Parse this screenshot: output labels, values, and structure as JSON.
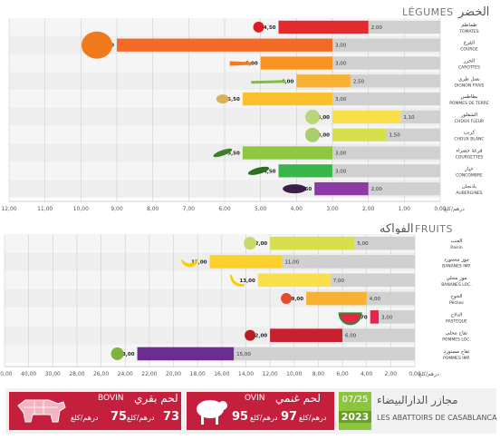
{
  "vegetables": {
    "title_fr": "LÉGUMES",
    "title_ar": "الخضر",
    "unit": "درهم/كلغ",
    "axis_ticks": [
      "12,00",
      "11,00",
      "10,00",
      "9,00",
      "8,00",
      "7,00",
      "6,00",
      "5,00",
      "4,00",
      "3,00",
      "2,00",
      "1,00",
      "0,00"
    ]
  },
  "fruits": {
    "title_fr": "FRUITS",
    "title_ar": "الفواكه",
    "unit": "درهم/كلغ",
    "axis_ticks": [
      "50,00",
      "40,00",
      "30,00",
      "28,00",
      "26,00",
      "24,00",
      "22,00",
      "20,00",
      "18,00",
      "16,00",
      "14,00",
      "12,00",
      "10,00",
      "8,00",
      "6,00",
      "4,00",
      "2,00",
      "0,00"
    ]
  },
  "chart_data": [
    {
      "type": "bar",
      "title": "LÉGUMES",
      "unit": "درهم/كلغ",
      "xlim": [
        0,
        12
      ],
      "series": [
        {
          "name": "max",
          "values": [
            4.5,
            9.0,
            5.0,
            4.0,
            5.5,
            3.0,
            3.0,
            5.5,
            4.5,
            3.5
          ]
        },
        {
          "name": "min",
          "values": [
            2.0,
            3.0,
            3.0,
            2.5,
            3.0,
            1.1,
            1.5,
            3.0,
            3.0,
            2.0
          ]
        }
      ],
      "categories": [
        {
          "ar": "طماطم",
          "fr": "TOMATES",
          "color": "#e32b2e",
          "icon": "tomato-icon"
        },
        {
          "ar": "القرع",
          "fr": "COURGE",
          "color": "#f26a26",
          "icon": "pumpkin-icon"
        },
        {
          "ar": "الجزر",
          "fr": "CAROTTES",
          "color": "#f7931e",
          "icon": "carrot-icon"
        },
        {
          "ar": "بصل طري",
          "fr": "OIGNON FRAIS",
          "color": "#f8b133",
          "icon": "onion-icon"
        },
        {
          "ar": "بطاطس",
          "fr": "POMMES DE TERRE",
          "color": "#fbc02d",
          "icon": "potato-icon"
        },
        {
          "ar": "الشفلور",
          "fr": "CHOUX FLEUR",
          "color": "#f9e04a",
          "icon": "cauliflower-icon"
        },
        {
          "ar": "كرنب",
          "fr": "CHOUX BLANC",
          "color": "#d7e04c",
          "icon": "cabbage-icon"
        },
        {
          "ar": "قرعة خضراء",
          "fr": "COURGETTES",
          "color": "#8dc63f",
          "icon": "zucchini-icon"
        },
        {
          "ar": "خيار",
          "fr": "CONCOMBRE",
          "color": "#39b54a",
          "icon": "cucumber-icon"
        },
        {
          "ar": "باذنجان",
          "fr": "AUBERGINES",
          "color": "#8e3aa6",
          "icon": "eggplant-icon"
        }
      ]
    },
    {
      "type": "bar",
      "title": "FRUITS",
      "unit": "درهم/كلغ",
      "xlim": [
        0,
        50
      ],
      "series": [
        {
          "name": "max",
          "values": [
            12.0,
            17.0,
            13.0,
            9.0,
            3.7,
            12.0,
            23.0
          ]
        },
        {
          "name": "min",
          "values": [
            5.0,
            11.0,
            7.0,
            4.0,
            3.0,
            6.0,
            15.0
          ]
        }
      ],
      "categories": [
        {
          "ar": "العنب",
          "fr": "Raisin",
          "color": "#d7e04c",
          "icon": "grapes-icon"
        },
        {
          "ar": "موز مستورد",
          "fr": "BANANES IMP.",
          "color": "#fbd12d",
          "icon": "bananas-icon"
        },
        {
          "ar": "موز محلي",
          "fr": "BANANES LOC.",
          "color": "#f9e04a",
          "icon": "banana-icon"
        },
        {
          "ar": "الخوخ",
          "fr": "Pêches",
          "color": "#f8b133",
          "icon": "peach-icon"
        },
        {
          "ar": "الدلاح",
          "fr": "PASTEQUE",
          "color": "#e8244a",
          "icon": "watermelon-icon"
        },
        {
          "ar": "تفاح محلي",
          "fr": "POMMES LOC.",
          "color": "#c8202f",
          "icon": "apple-icon"
        },
        {
          "ar": "تفاح مستورد",
          "fr": "POMMES IMP.",
          "color": "#6b2d91",
          "icon": "apples-icon"
        }
      ]
    }
  ],
  "footer": {
    "beef": {
      "ar": "لحم بقري",
      "fr": "BOVIN",
      "price1": "73",
      "price1_unit": "درهم/كلغ",
      "price2": "75",
      "price2_unit": "درهم/كلغ"
    },
    "lamb": {
      "ar": "لحم غنمي",
      "fr": "OVIN",
      "price1": "95",
      "price1_unit": "درهم/كلغ",
      "price2": "97",
      "price2_unit": "درهم/كلغ"
    },
    "abattoirs": {
      "ar": "مجازر الدارالبيضاء",
      "fr": "LES ABATTOIRS DE CASABLANCA",
      "date": "07/25",
      "year": "2023"
    }
  }
}
